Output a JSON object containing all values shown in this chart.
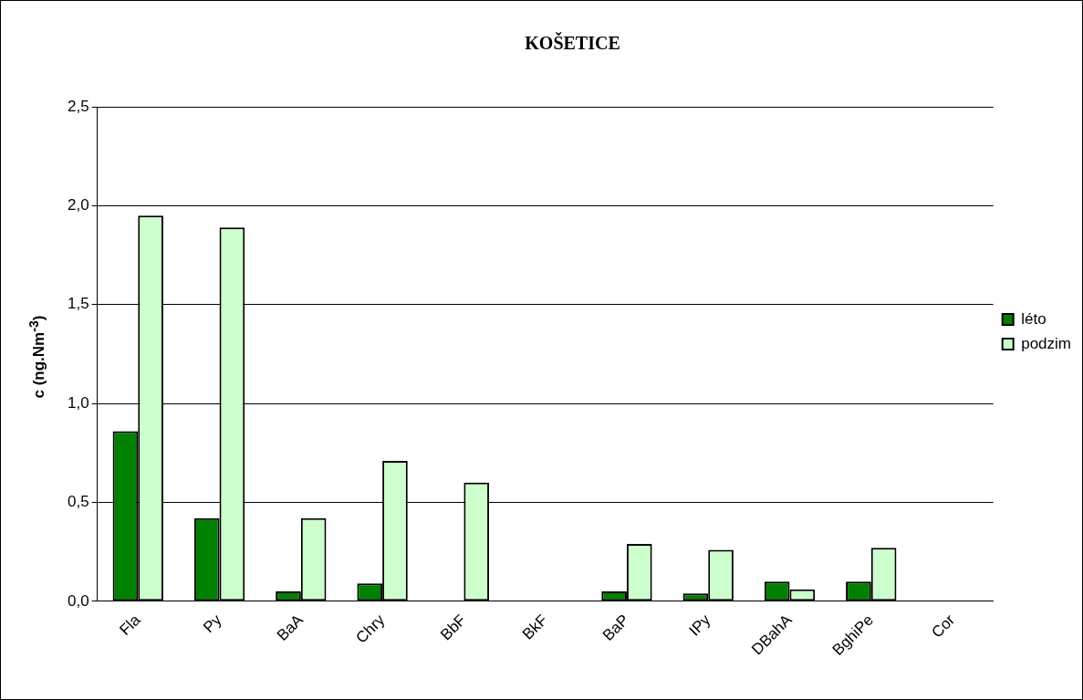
{
  "chart_data": {
    "type": "bar",
    "title": "KOŠETICE",
    "ylabel": "c (ng.Nm$^{-3}$)",
    "categories": [
      "Fla",
      "Py",
      "BaA",
      "Chry",
      "BbF",
      "BkF",
      "BaP",
      "IPy",
      "DBahA",
      "BghiPe",
      "Cor"
    ],
    "series": [
      {
        "name": "léto",
        "color": "#008000",
        "values": [
          0.86,
          0.42,
          0.05,
          0.09,
          null,
          null,
          0.05,
          0.04,
          0.1,
          0.1,
          null
        ]
      },
      {
        "name": "podzim",
        "color": "#ccffcc",
        "values": [
          1.95,
          1.89,
          0.42,
          0.71,
          0.6,
          null,
          0.29,
          0.26,
          0.06,
          0.27,
          null
        ]
      }
    ],
    "ylim": [
      0,
      2.5
    ],
    "yticks": [
      {
        "value": 0,
        "label": "0,0"
      },
      {
        "value": 0.5,
        "label": "0,5"
      },
      {
        "value": 1,
        "label": "1,0"
      },
      {
        "value": 1.5,
        "label": "1,5"
      },
      {
        "value": 2,
        "label": "2,0"
      },
      {
        "value": 2.5,
        "label": "2,5"
      }
    ],
    "grid": "y",
    "legend": "right"
  }
}
